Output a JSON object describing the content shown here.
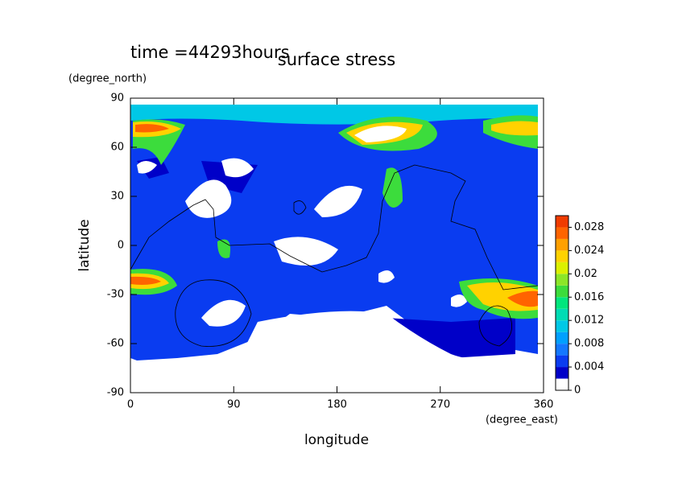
{
  "chart_data": {
    "type": "contour",
    "title": "surface stress",
    "subtitle": "time =44293hours",
    "x_label": "longitude",
    "x_unit": "(degree_east)",
    "y_label": "latitude",
    "y_unit": "(degree_north)",
    "xlim": [
      0,
      360
    ],
    "xticks": [
      0,
      90,
      180,
      270,
      360
    ],
    "ylim": [
      -90,
      90
    ],
    "yticks": [
      -90,
      -60,
      -30,
      0,
      30,
      60,
      90
    ],
    "colorbar": {
      "lim": [
        0,
        0.03
      ],
      "ticks": [
        0,
        0.004,
        0.008,
        0.012,
        0.016,
        0.02,
        0.024,
        0.028
      ],
      "levels": [
        0,
        0.002,
        0.004,
        0.006,
        0.008,
        0.01,
        0.012,
        0.014,
        0.016,
        0.018,
        0.02,
        0.022,
        0.024,
        0.026,
        0.028,
        0.03
      ],
      "colors": [
        "#ffffff",
        "#0000c8",
        "#0a3cf0",
        "#1478ff",
        "#00a0ff",
        "#00c8e6",
        "#00dcb4",
        "#00e67d",
        "#3cdc3c",
        "#8ce628",
        "#dcf000",
        "#ffd200",
        "#ffa000",
        "#ff6400",
        "#f03c00"
      ]
    }
  }
}
